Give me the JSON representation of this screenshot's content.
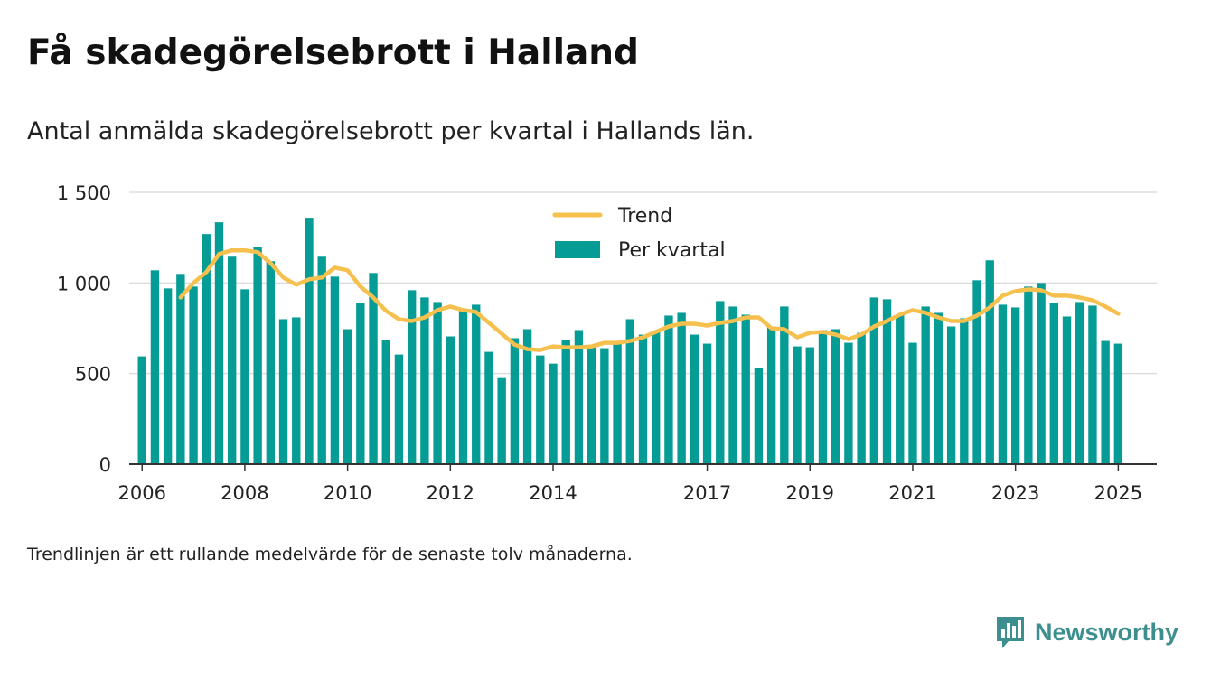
{
  "title": "Få skadegörelsebrott i Halland",
  "subtitle": "Antal anmälda skadegörelsebrott per kvartal i Hallands län.",
  "note": "Trendlinjen är ett rullande medelvärde för de senaste tolv månaderna.",
  "brand": {
    "name": "Newsworthy",
    "icon": "chart-bubble-icon"
  },
  "colors": {
    "bars": "#069c96",
    "trend": "#f5c04e",
    "grid": "#dddddd",
    "axis": "#333333"
  },
  "chart_data": {
    "type": "bar",
    "title": "Få skadegörelsebrott i Halland",
    "xlabel": "",
    "ylabel": "",
    "ylim": [
      0,
      1500
    ],
    "xlim": [
      2005.75,
      2025.75
    ],
    "grid": true,
    "legend_position": "top-center",
    "yticks": [
      0,
      500,
      1000,
      1500
    ],
    "ytick_labels": [
      "0",
      "500",
      "1 000",
      "1 500"
    ],
    "xticks": [
      2006,
      2008,
      2010,
      2012,
      2014,
      2017,
      2019,
      2021,
      2023,
      2025
    ],
    "xtick_labels": [
      "2006",
      "2008",
      "2010",
      "2012",
      "2014",
      "2017",
      "2019",
      "2021",
      "2023",
      "2025"
    ],
    "legend": [
      "Trend",
      "Per kvartal"
    ],
    "series": [
      {
        "name": "Per kvartal",
        "type": "bar",
        "x": [
          "2006 Q1",
          "2006 Q2",
          "2006 Q3",
          "2006 Q4",
          "2007 Q1",
          "2007 Q2",
          "2007 Q3",
          "2007 Q4",
          "2008 Q1",
          "2008 Q2",
          "2008 Q3",
          "2008 Q4",
          "2009 Q1",
          "2009 Q2",
          "2009 Q3",
          "2009 Q4",
          "2010 Q1",
          "2010 Q2",
          "2010 Q3",
          "2010 Q4",
          "2011 Q1",
          "2011 Q2",
          "2011 Q3",
          "2011 Q4",
          "2012 Q1",
          "2012 Q2",
          "2012 Q3",
          "2012 Q4",
          "2013 Q1",
          "2013 Q2",
          "2013 Q3",
          "2013 Q4",
          "2014 Q1",
          "2014 Q2",
          "2014 Q3",
          "2014 Q4",
          "2015 Q1",
          "2015 Q2",
          "2015 Q3",
          "2015 Q4",
          "2016 Q1",
          "2016 Q2",
          "2016 Q3",
          "2016 Q4",
          "2017 Q1",
          "2017 Q2",
          "2017 Q3",
          "2017 Q4",
          "2018 Q1",
          "2018 Q2",
          "2018 Q3",
          "2018 Q4",
          "2019 Q1",
          "2019 Q2",
          "2019 Q3",
          "2019 Q4",
          "2020 Q1",
          "2020 Q2",
          "2020 Q3",
          "2020 Q4",
          "2021 Q1",
          "2021 Q2",
          "2021 Q3",
          "2021 Q4",
          "2022 Q1",
          "2022 Q2",
          "2022 Q3",
          "2022 Q4",
          "2023 Q1",
          "2023 Q2",
          "2023 Q3",
          "2023 Q4",
          "2024 Q1",
          "2024 Q2",
          "2024 Q3",
          "2024 Q4",
          "2025 Q1"
        ],
        "values": [
          595,
          1070,
          970,
          1050,
          980,
          1270,
          1335,
          1145,
          965,
          1200,
          1120,
          800,
          810,
          1360,
          1145,
          1035,
          745,
          890,
          1055,
          685,
          605,
          960,
          920,
          895,
          705,
          850,
          880,
          620,
          475,
          695,
          745,
          600,
          555,
          685,
          740,
          650,
          640,
          665,
          800,
          715,
          730,
          820,
          835,
          715,
          665,
          900,
          870,
          825,
          530,
          760,
          870,
          650,
          645,
          740,
          745,
          670,
          725,
          920,
          910,
          825,
          670,
          870,
          835,
          760,
          805,
          1015,
          1125,
          880,
          865,
          980,
          1000,
          890,
          815,
          895,
          875,
          680,
          665
        ]
      },
      {
        "name": "Trend",
        "type": "line",
        "x": [
          2006.75,
          2007.0,
          2007.25,
          2007.5,
          2007.75,
          2008.0,
          2008.25,
          2008.5,
          2008.75,
          2009.0,
          2009.25,
          2009.5,
          2009.75,
          2010.0,
          2010.25,
          2010.5,
          2010.75,
          2011.0,
          2011.25,
          2011.5,
          2011.75,
          2012.0,
          2012.25,
          2012.5,
          2012.75,
          2013.0,
          2013.25,
          2013.5,
          2013.75,
          2014.0,
          2014.25,
          2014.5,
          2014.75,
          2015.0,
          2015.25,
          2015.5,
          2015.75,
          2016.0,
          2016.25,
          2016.5,
          2016.75,
          2017.0,
          2017.25,
          2017.5,
          2017.75,
          2018.0,
          2018.25,
          2018.5,
          2018.75,
          2019.0,
          2019.25,
          2019.5,
          2019.75,
          2020.0,
          2020.25,
          2020.5,
          2020.75,
          2021.0,
          2021.25,
          2021.5,
          2021.75,
          2022.0,
          2022.25,
          2022.5,
          2022.75,
          2023.0,
          2023.25,
          2023.5,
          2023.75,
          2024.0,
          2024.25,
          2024.5,
          2024.75,
          2025.0
        ],
        "values": [
          920,
          1000,
          1060,
          1160,
          1180,
          1180,
          1170,
          1110,
          1030,
          990,
          1020,
          1030,
          1085,
          1070,
          980,
          920,
          845,
          800,
          790,
          810,
          850,
          870,
          850,
          840,
          780,
          720,
          660,
          635,
          630,
          650,
          645,
          645,
          650,
          670,
          670,
          680,
          700,
          730,
          760,
          775,
          775,
          765,
          780,
          790,
          810,
          810,
          750,
          745,
          700,
          725,
          730,
          715,
          690,
          715,
          760,
          790,
          825,
          850,
          835,
          810,
          790,
          790,
          820,
          865,
          930,
          955,
          965,
          960,
          930,
          930,
          920,
          905,
          870,
          830
        ]
      }
    ]
  }
}
